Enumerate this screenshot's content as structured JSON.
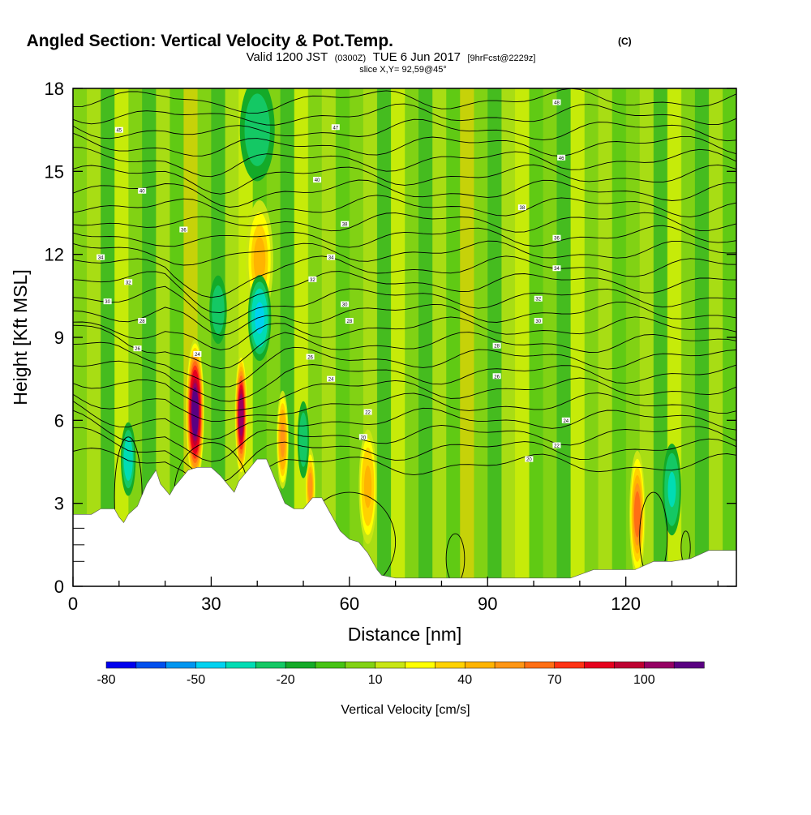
{
  "chart_data": {
    "type": "heatmap",
    "title": "Angled Section: Vertical Velocity & Pot.Temp.",
    "title_units": "(C)",
    "subtitle_parts": [
      "Valid 1200 JST",
      "(0300Z)",
      "TUE 6 Jun 2017",
      "[9hrFcst@2229z]"
    ],
    "slice_label": "slice X,Y= 92,59@45°",
    "xlabel": "Distance [nm]",
    "ylabel": "Height [Kft MSL]",
    "xlim": [
      0,
      144
    ],
    "ylim": [
      0,
      18
    ],
    "xticks": [
      0,
      30,
      60,
      90,
      120
    ],
    "yticks": [
      0,
      3,
      6,
      9,
      12,
      15,
      18
    ],
    "colorbar": {
      "label": "Vertical Velocity [cm/s]",
      "min": -80,
      "max": 120,
      "step": 10,
      "tick_values": [
        -80,
        -50,
        -20,
        10,
        40,
        70,
        100
      ],
      "colors": [
        "#0000ee",
        "#0050ee",
        "#0096f0",
        "#00d2f0",
        "#00dcb4",
        "#14c864",
        "#14aa28",
        "#46c314",
        "#82d214",
        "#c8e614",
        "#ffff00",
        "#ffd200",
        "#ffb400",
        "#ff9614",
        "#ff6e14",
        "#ff3214",
        "#e6001e",
        "#be0032",
        "#960064",
        "#5a0082"
      ]
    },
    "terrain_kft": [
      [
        0,
        2.6
      ],
      [
        4,
        2.6
      ],
      [
        6,
        2.8
      ],
      [
        9,
        2.8
      ],
      [
        10,
        2.5
      ],
      [
        11,
        2.3
      ],
      [
        12,
        2.6
      ],
      [
        14,
        2.9
      ],
      [
        15,
        3.3
      ],
      [
        16,
        3.7
      ],
      [
        18,
        4.2
      ],
      [
        19,
        3.7
      ],
      [
        20,
        3.5
      ],
      [
        21,
        3.3
      ],
      [
        22,
        3.6
      ],
      [
        23,
        3.8
      ],
      [
        25,
        4.2
      ],
      [
        27,
        4.3
      ],
      [
        30,
        4.3
      ],
      [
        32,
        4.0
      ],
      [
        34,
        3.6
      ],
      [
        35,
        3.4
      ],
      [
        36,
        3.8
      ],
      [
        38,
        4.2
      ],
      [
        40,
        4.6
      ],
      [
        42,
        4.6
      ],
      [
        43,
        4.2
      ],
      [
        44,
        3.8
      ],
      [
        45,
        3.4
      ],
      [
        46,
        3.0
      ],
      [
        48,
        2.8
      ],
      [
        50,
        2.8
      ],
      [
        52,
        3.2
      ],
      [
        54,
        3.2
      ],
      [
        56,
        2.6
      ],
      [
        58,
        2.0
      ],
      [
        60,
        1.7
      ],
      [
        62,
        1.6
      ],
      [
        64,
        1.2
      ],
      [
        65,
        0.9
      ],
      [
        66,
        0.6
      ],
      [
        67,
        0.4
      ],
      [
        70,
        0.3
      ],
      [
        76,
        0.3
      ],
      [
        80,
        0.3
      ],
      [
        90,
        0.3
      ],
      [
        100,
        0.3
      ],
      [
        108,
        0.3
      ],
      [
        113,
        0.6
      ],
      [
        118,
        0.6
      ],
      [
        122,
        0.6
      ],
      [
        126,
        0.9
      ],
      [
        130,
        0.9
      ],
      [
        134,
        1.0
      ],
      [
        138,
        1.3
      ],
      [
        144,
        1.3
      ]
    ],
    "updrafts": [
      {
        "x": 26.5,
        "z": 6.3,
        "peak_cms": 115,
        "sx": 1.3,
        "sz": 1.4
      },
      {
        "x": 36.5,
        "z": 6.2,
        "peak_cms": 100,
        "sx": 0.9,
        "sz": 1.2
      },
      {
        "x": 45.5,
        "z": 5.3,
        "peak_cms": 55,
        "sx": 0.9,
        "sz": 1.0
      },
      {
        "x": 51.5,
        "z": 3.6,
        "peak_cms": 50,
        "sx": 0.8,
        "sz": 0.8
      },
      {
        "x": 64.0,
        "z": 3.6,
        "peak_cms": 45,
        "sx": 1.4,
        "sz": 1.2
      },
      {
        "x": 122.5,
        "z": 2.6,
        "peak_cms": 60,
        "sx": 1.2,
        "sz": 1.3
      },
      {
        "x": 40.5,
        "z": 11.8,
        "peak_cms": 40,
        "sx": 2.2,
        "sz": 1.3
      }
    ],
    "downdrafts": [
      {
        "x": 40.5,
        "z": 9.7,
        "peak_cms": -45,
        "sx": 1.8,
        "sz": 0.9
      },
      {
        "x": 31.5,
        "z": 10.0,
        "peak_cms": -30,
        "sx": 1.5,
        "sz": 0.8
      },
      {
        "x": 12.0,
        "z": 4.6,
        "peak_cms": -40,
        "sx": 1.2,
        "sz": 0.8
      },
      {
        "x": 50.0,
        "z": 5.3,
        "peak_cms": -30,
        "sx": 1.0,
        "sz": 0.9
      },
      {
        "x": 40.0,
        "z": 16.5,
        "peak_cms": -30,
        "sx": 3.0,
        "sz": 1.2
      },
      {
        "x": 130.0,
        "z": 3.5,
        "peak_cms": -35,
        "sx": 1.5,
        "sz": 1.0
      }
    ],
    "contour_labels": [
      {
        "x": 10,
        "z": 16.5,
        "text": "45"
      },
      {
        "x": 15,
        "z": 14.3,
        "text": "40"
      },
      {
        "x": 24,
        "z": 12.9,
        "text": "36"
      },
      {
        "x": 6,
        "z": 11.9,
        "text": "34"
      },
      {
        "x": 12,
        "z": 11.0,
        "text": "32"
      },
      {
        "x": 7.5,
        "z": 10.3,
        "text": "30"
      },
      {
        "x": 15,
        "z": 9.6,
        "text": "28"
      },
      {
        "x": 14,
        "z": 8.6,
        "text": "26"
      },
      {
        "x": 27,
        "z": 8.4,
        "text": "24"
      },
      {
        "x": 57,
        "z": 16.6,
        "text": "47"
      },
      {
        "x": 53,
        "z": 14.7,
        "text": "40"
      },
      {
        "x": 59,
        "z": 13.1,
        "text": "38"
      },
      {
        "x": 56,
        "z": 11.9,
        "text": "34"
      },
      {
        "x": 52,
        "z": 11.1,
        "text": "32"
      },
      {
        "x": 59,
        "z": 10.2,
        "text": "30"
      },
      {
        "x": 60,
        "z": 9.6,
        "text": "28"
      },
      {
        "x": 51.5,
        "z": 8.3,
        "text": "26"
      },
      {
        "x": 56,
        "z": 7.5,
        "text": "24"
      },
      {
        "x": 64,
        "z": 6.3,
        "text": "22"
      },
      {
        "x": 63,
        "z": 5.4,
        "text": "20"
      },
      {
        "x": 105,
        "z": 17.5,
        "text": "48"
      },
      {
        "x": 106,
        "z": 15.5,
        "text": "46"
      },
      {
        "x": 97.5,
        "z": 13.7,
        "text": "38"
      },
      {
        "x": 105,
        "z": 12.6,
        "text": "36"
      },
      {
        "x": 105,
        "z": 11.5,
        "text": "34"
      },
      {
        "x": 101,
        "z": 10.4,
        "text": "32"
      },
      {
        "x": 101,
        "z": 9.6,
        "text": "30"
      },
      {
        "x": 92,
        "z": 8.7,
        "text": "28"
      },
      {
        "x": 92,
        "z": 7.6,
        "text": "26"
      },
      {
        "x": 107,
        "z": 6.0,
        "text": "24"
      },
      {
        "x": 105,
        "z": 5.1,
        "text": "22"
      },
      {
        "x": 99,
        "z": 4.6,
        "text": "20"
      }
    ]
  }
}
